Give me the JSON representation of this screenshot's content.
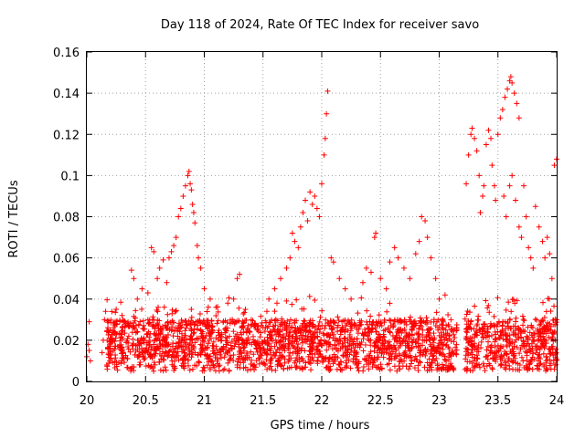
{
  "chart_data": {
    "type": "scatter",
    "title": "Day 118 of 2024, Rate Of TEC Index for receiver savo",
    "xlabel": "GPS time / hours",
    "ylabel": "ROTI / TECUs",
    "xlim": [
      20,
      24
    ],
    "ylim": [
      0,
      0.16
    ],
    "xticks": [
      {
        "value": 20,
        "label": "20"
      },
      {
        "value": 20.5,
        "label": "20.5"
      },
      {
        "value": 21,
        "label": "21"
      },
      {
        "value": 21.5,
        "label": "21.5"
      },
      {
        "value": 22,
        "label": "22"
      },
      {
        "value": 22.5,
        "label": "22.5"
      },
      {
        "value": 23,
        "label": "23"
      },
      {
        "value": 23.5,
        "label": "23.5"
      },
      {
        "value": 24,
        "label": "24"
      }
    ],
    "yticks": [
      {
        "value": 0,
        "label": "0"
      },
      {
        "value": 0.02,
        "label": "0.02"
      },
      {
        "value": 0.04,
        "label": "0.04"
      },
      {
        "value": 0.06,
        "label": "0.06"
      },
      {
        "value": 0.08,
        "label": "0.08"
      },
      {
        "value": 0.1,
        "label": "0.1"
      },
      {
        "value": 0.12,
        "label": "0.12"
      },
      {
        "value": 0.14,
        "label": "0.14"
      },
      {
        "value": 0.16,
        "label": "0.16"
      }
    ],
    "grid": true,
    "marker": "+",
    "series": [
      {
        "name": "ROTI",
        "color": "#ff0000",
        "points": [
          [
            20.0,
            0.012
          ],
          [
            20.01,
            0.018
          ],
          [
            20.02,
            0.015
          ],
          [
            20.02,
            0.029
          ],
          [
            20.03,
            0.01
          ],
          [
            20.13,
            0.014
          ],
          [
            20.14,
            0.02
          ],
          [
            20.15,
            0.03
          ],
          [
            20.16,
            0.034
          ],
          [
            20.17,
            0.008
          ],
          [
            20.2,
            0.025
          ],
          [
            20.25,
            0.035
          ],
          [
            20.3,
            0.032
          ],
          [
            20.33,
            0.028
          ],
          [
            20.38,
            0.054
          ],
          [
            20.4,
            0.05
          ],
          [
            20.43,
            0.04
          ],
          [
            20.47,
            0.045
          ],
          [
            20.52,
            0.043
          ],
          [
            20.55,
            0.065
          ],
          [
            20.57,
            0.063
          ],
          [
            20.6,
            0.05
          ],
          [
            20.62,
            0.055
          ],
          [
            20.65,
            0.059
          ],
          [
            20.68,
            0.048
          ],
          [
            20.7,
            0.06
          ],
          [
            20.72,
            0.063
          ],
          [
            20.74,
            0.066
          ],
          [
            20.76,
            0.07
          ],
          [
            20.78,
            0.08
          ],
          [
            20.8,
            0.084
          ],
          [
            20.82,
            0.09
          ],
          [
            20.84,
            0.095
          ],
          [
            20.86,
            0.1
          ],
          [
            20.87,
            0.102
          ],
          [
            20.88,
            0.096
          ],
          [
            20.89,
            0.093
          ],
          [
            20.9,
            0.086
          ],
          [
            20.91,
            0.082
          ],
          [
            20.92,
            0.077
          ],
          [
            20.94,
            0.066
          ],
          [
            20.95,
            0.06
          ],
          [
            20.97,
            0.055
          ],
          [
            21.0,
            0.045
          ],
          [
            21.05,
            0.04
          ],
          [
            21.1,
            0.036
          ],
          [
            21.2,
            0.038
          ],
          [
            21.25,
            0.04
          ],
          [
            21.28,
            0.05
          ],
          [
            21.3,
            0.052
          ],
          [
            21.35,
            0.035
          ],
          [
            21.4,
            0.03
          ],
          [
            21.45,
            0.025
          ],
          [
            21.55,
            0.04
          ],
          [
            21.6,
            0.045
          ],
          [
            21.65,
            0.05
          ],
          [
            21.7,
            0.055
          ],
          [
            21.73,
            0.06
          ],
          [
            21.75,
            0.072
          ],
          [
            21.77,
            0.068
          ],
          [
            21.8,
            0.065
          ],
          [
            21.82,
            0.075
          ],
          [
            21.84,
            0.082
          ],
          [
            21.86,
            0.088
          ],
          [
            21.88,
            0.078
          ],
          [
            21.9,
            0.092
          ],
          [
            21.92,
            0.086
          ],
          [
            21.94,
            0.09
          ],
          [
            21.96,
            0.084
          ],
          [
            21.98,
            0.08
          ],
          [
            22.0,
            0.096
          ],
          [
            22.02,
            0.11
          ],
          [
            22.03,
            0.118
          ],
          [
            22.04,
            0.13
          ],
          [
            22.05,
            0.141
          ],
          [
            22.08,
            0.06
          ],
          [
            22.1,
            0.058
          ],
          [
            22.15,
            0.05
          ],
          [
            22.2,
            0.045
          ],
          [
            22.25,
            0.04
          ],
          [
            22.35,
            0.048
          ],
          [
            22.38,
            0.055
          ],
          [
            22.42,
            0.053
          ],
          [
            22.45,
            0.07
          ],
          [
            22.46,
            0.072
          ],
          [
            22.5,
            0.05
          ],
          [
            22.55,
            0.045
          ],
          [
            22.58,
            0.058
          ],
          [
            22.62,
            0.065
          ],
          [
            22.65,
            0.06
          ],
          [
            22.7,
            0.055
          ],
          [
            22.75,
            0.05
          ],
          [
            22.8,
            0.062
          ],
          [
            22.83,
            0.068
          ],
          [
            22.85,
            0.08
          ],
          [
            22.88,
            0.078
          ],
          [
            22.9,
            0.07
          ],
          [
            22.93,
            0.06
          ],
          [
            22.97,
            0.05
          ],
          [
            23.0,
            0.04
          ],
          [
            23.05,
            0.042
          ],
          [
            23.1,
            0.03
          ],
          [
            23.15,
            0.025
          ],
          [
            23.23,
            0.096
          ],
          [
            23.25,
            0.11
          ],
          [
            23.27,
            0.12
          ],
          [
            23.28,
            0.123
          ],
          [
            23.3,
            0.118
          ],
          [
            23.32,
            0.112
          ],
          [
            23.34,
            0.1
          ],
          [
            23.35,
            0.082
          ],
          [
            23.37,
            0.09
          ],
          [
            23.38,
            0.095
          ],
          [
            23.4,
            0.115
          ],
          [
            23.42,
            0.122
          ],
          [
            23.44,
            0.118
          ],
          [
            23.45,
            0.105
          ],
          [
            23.47,
            0.095
          ],
          [
            23.48,
            0.088
          ],
          [
            23.5,
            0.12
          ],
          [
            23.52,
            0.128
          ],
          [
            23.54,
            0.132
          ],
          [
            23.56,
            0.138
          ],
          [
            23.58,
            0.142
          ],
          [
            23.6,
            0.146
          ],
          [
            23.61,
            0.148
          ],
          [
            23.62,
            0.145
          ],
          [
            23.64,
            0.14
          ],
          [
            23.66,
            0.135
          ],
          [
            23.68,
            0.128
          ],
          [
            23.55,
            0.09
          ],
          [
            23.57,
            0.08
          ],
          [
            23.6,
            0.095
          ],
          [
            23.62,
            0.1
          ],
          [
            23.65,
            0.088
          ],
          [
            23.68,
            0.075
          ],
          [
            23.7,
            0.07
          ],
          [
            23.72,
            0.095
          ],
          [
            23.74,
            0.08
          ],
          [
            23.76,
            0.065
          ],
          [
            23.78,
            0.06
          ],
          [
            23.8,
            0.055
          ],
          [
            23.82,
            0.085
          ],
          [
            23.85,
            0.075
          ],
          [
            23.88,
            0.068
          ],
          [
            23.9,
            0.06
          ],
          [
            23.92,
            0.07
          ],
          [
            23.94,
            0.062
          ],
          [
            23.96,
            0.05
          ],
          [
            23.98,
            0.105
          ],
          [
            24.0,
            0.108
          ],
          [
            23.99,
            0.02
          ],
          [
            23.98,
            0.006
          ],
          [
            24.0,
            0.03
          ]
        ],
        "dense_bands": [
          {
            "xmin": 20.17,
            "xmax": 23.15,
            "ymin": 0.005,
            "ymax": 0.03
          },
          {
            "xmin": 23.22,
            "xmax": 24.0,
            "ymin": 0.005,
            "ymax": 0.03
          }
        ]
      }
    ]
  }
}
